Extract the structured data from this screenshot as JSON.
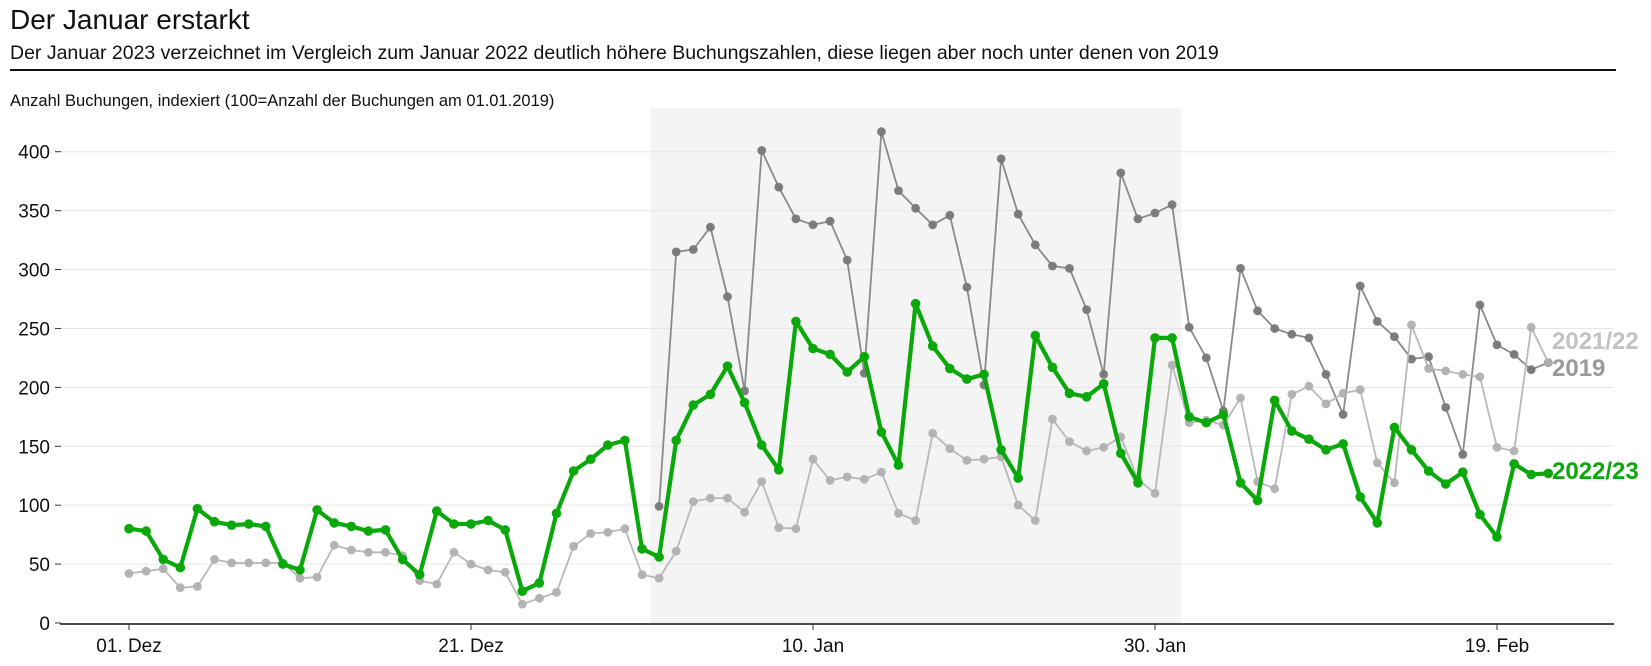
{
  "header": {
    "title": "Der Januar erstarkt",
    "subtitle": "Der Januar 2023 verzeichnet im Vergleich zum Januar 2022 deutlich höhere Buchungszahlen, diese liegen aber noch unter denen von 2019"
  },
  "chart_data": {
    "type": "line",
    "title": "Der Januar erstarkt",
    "subtitle": "Der Januar 2023 verzeichnet im Vergleich zum Januar 2022 deutlich höhere Buchungszahlen, diese liegen aber noch unter denen von 2019",
    "ylabel": "Anzahl Buchungen, indexiert (100=Anzahl der Buchungen am 01.01.2019)",
    "xlabel": "",
    "ylim": [
      0,
      430
    ],
    "yticks": [
      0,
      50,
      100,
      150,
      200,
      250,
      300,
      350,
      400
    ],
    "ytick_labels": [
      "0",
      "50",
      "100",
      "150",
      "200",
      "250",
      "300",
      "350",
      "400"
    ],
    "xlim": [
      -4,
      86
    ],
    "xticks": [
      0,
      20,
      40,
      60,
      80
    ],
    "xtick_labels": [
      "01. Dez",
      "21. Dez",
      "10. Jan",
      "30. Jan",
      "19. Feb"
    ],
    "x_start": 0,
    "grid": "horizontal",
    "shaded_region": {
      "from": 31,
      "to": 61,
      "color": "#f4f4f4"
    },
    "series": [
      {
        "name": "2019",
        "color": "#8a8a8a",
        "marker_color": "#777777",
        "line_width": 1.8,
        "start_index": 31,
        "values": [
          99,
          315,
          317,
          336,
          277,
          197,
          401,
          370,
          343,
          338,
          341,
          308,
          212,
          417,
          367,
          352,
          338,
          346,
          285,
          202,
          394,
          347,
          321,
          303,
          301,
          266,
          211,
          382,
          343,
          348,
          355,
          251,
          225,
          180,
          301,
          265,
          250,
          245,
          242,
          211,
          177,
          286,
          256,
          243,
          224,
          226,
          183,
          143,
          270,
          236,
          228,
          215,
          221
        ]
      },
      {
        "name": "2021/22",
        "color": "#b9b9b9",
        "marker_color": "#b0b0b0",
        "line_width": 1.8,
        "start_index": 0,
        "values": [
          42,
          44,
          46,
          30,
          31,
          54,
          51,
          51,
          51,
          51,
          38,
          39,
          66,
          62,
          60,
          60,
          57,
          36,
          33,
          60,
          50,
          45,
          43,
          16,
          21,
          26,
          65,
          76,
          77,
          80,
          41,
          38,
          61,
          103,
          106,
          106,
          94,
          120,
          81,
          80,
          139,
          121,
          124,
          122,
          128,
          93,
          87,
          161,
          148,
          138,
          139,
          141,
          100,
          87,
          173,
          154,
          146,
          149,
          158,
          122,
          110,
          219,
          170,
          172,
          168,
          191,
          120,
          114,
          194,
          201,
          186,
          195,
          198,
          136,
          119,
          253,
          216,
          214,
          211,
          209,
          149,
          146,
          251,
          221
        ]
      },
      {
        "name": "2022/23",
        "color": "#0aa80a",
        "marker_color": "#0aa80a",
        "line_width": 4.2,
        "start_index": 0,
        "values": [
          80,
          78,
          54,
          47,
          97,
          86,
          83,
          84,
          82,
          50,
          45,
          96,
          85,
          82,
          78,
          79,
          54,
          41,
          95,
          84,
          84,
          87,
          79,
          27,
          34,
          93,
          129,
          139,
          151,
          155,
          63,
          56,
          155,
          185,
          194,
          218,
          187,
          151,
          130,
          256,
          233,
          228,
          213,
          226,
          162,
          134,
          271,
          235,
          216,
          207,
          211,
          147,
          123,
          244,
          217,
          195,
          192,
          203,
          144,
          119,
          242,
          242,
          175,
          170,
          177,
          119,
          104,
          189,
          163,
          156,
          147,
          152,
          107,
          85,
          166,
          147,
          129,
          118,
          128,
          92,
          73,
          135,
          126,
          127
        ]
      }
    ],
    "series_labels": [
      {
        "text": "2021/22",
        "color": "#c2c2c2"
      },
      {
        "text": "2019",
        "color": "#9a9a9a"
      },
      {
        "text": "2022/23",
        "color": "#0aa80a"
      }
    ]
  }
}
